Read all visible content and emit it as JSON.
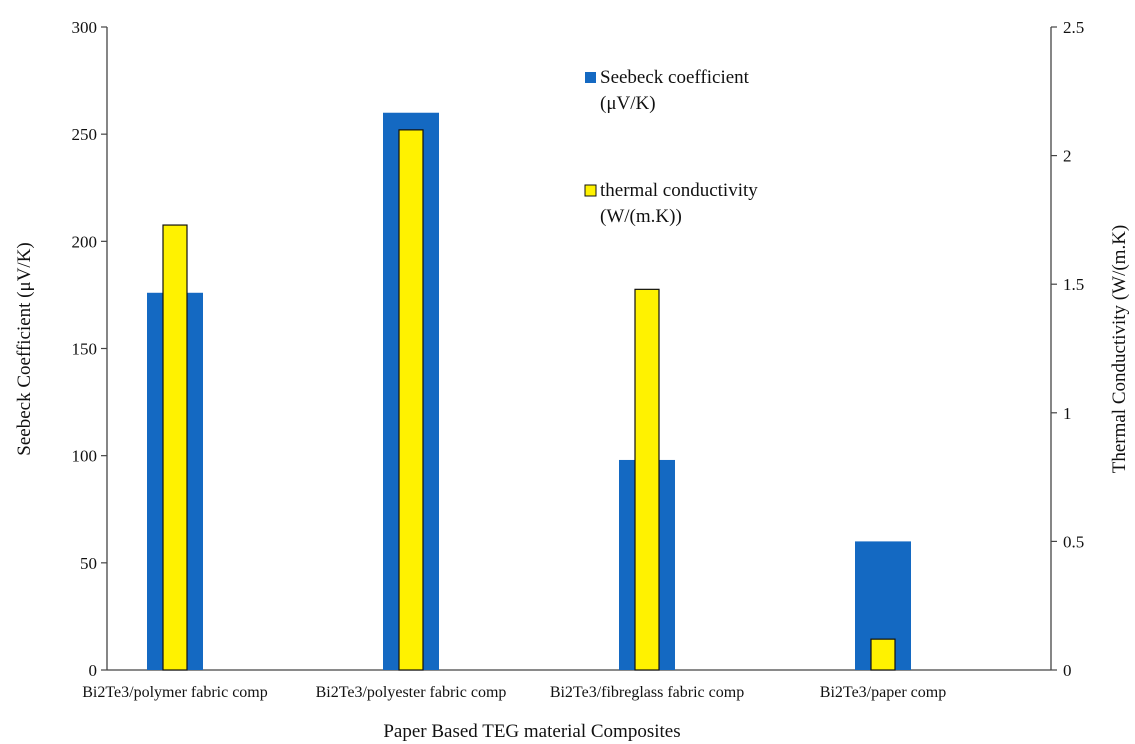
{
  "chart_data": {
    "type": "bar",
    "categories": [
      "Bi2Te3/polymer fabric comp",
      "Bi2Te3/polyester fabric comp",
      "Bi2Te3/fibreglass fabric comp",
      "Bi2Te3/paper comp"
    ],
    "series": [
      {
        "name": "Seebeck coefficient (μV/K)",
        "legend_lines": [
          "Seebeck coefficient",
          "(μV/K)"
        ],
        "axis": "left",
        "color": "#1469C2",
        "values": [
          176,
          260,
          98,
          60
        ]
      },
      {
        "name": "thermal conductivity (W/(m.K))",
        "legend_lines": [
          "thermal conductivity",
          "(W/(m.K))"
        ],
        "axis": "right",
        "color": "#FFF200",
        "values": [
          1.73,
          2.1,
          1.48,
          0.12
        ]
      }
    ],
    "xlabel": "Paper Based TEG material Composites",
    "ylabel": "Seebeck Coefficient (μV/K)",
    "y2label": "Thermal Conductivity (W/(m.K)",
    "ylim": [
      0,
      300
    ],
    "y2lim": [
      0,
      2.5
    ],
    "yticks": [
      "0",
      "50",
      "100",
      "150",
      "200",
      "250",
      "300"
    ],
    "y2ticks": [
      "0",
      "0.5",
      "1",
      "1.5",
      "2",
      "2.5"
    ],
    "grid": false,
    "legend_position": "top-center"
  }
}
